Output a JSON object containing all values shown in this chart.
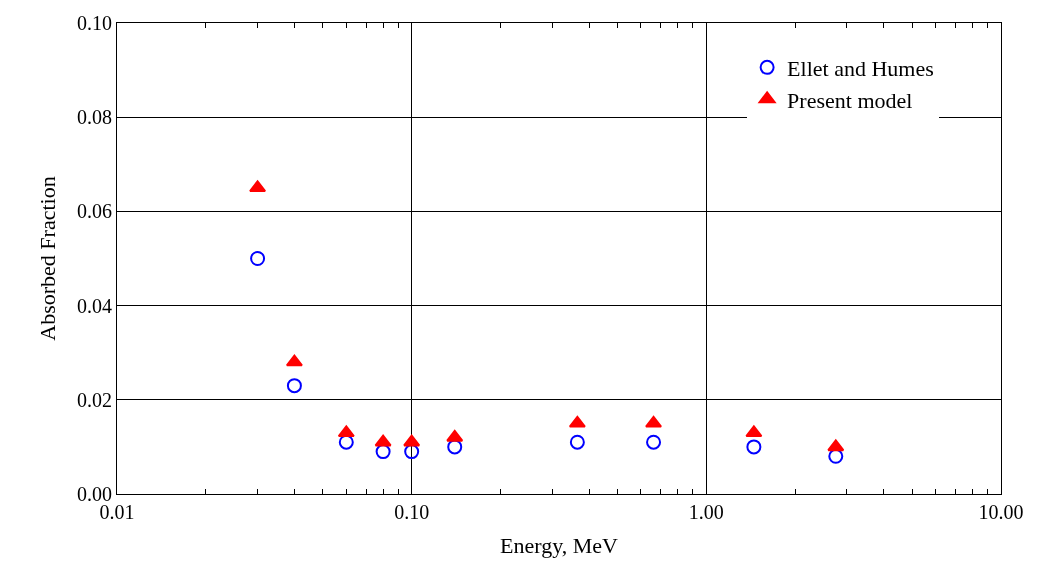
{
  "chart_data": {
    "type": "scatter",
    "xlabel": "Energy, MeV",
    "ylabel": "Absorbed Fraction",
    "log": "x",
    "x": [
      0.03,
      0.04,
      0.06,
      0.08,
      0.1,
      0.14,
      0.365,
      0.662,
      1.45,
      2.75
    ],
    "series": [
      {
        "name": "Ellet and Humes",
        "color": "#0000ff",
        "marker": "circle",
        "values": [
          0.05,
          0.023,
          0.011,
          0.009,
          0.009,
          0.01,
          0.011,
          0.011,
          0.01,
          0.008
        ]
      },
      {
        "name": "Present model",
        "color": "#ff0000",
        "marker": "triangle",
        "values": [
          0.065,
          0.028,
          0.013,
          0.011,
          0.011,
          0.012,
          0.015,
          0.015,
          0.013,
          0.01
        ]
      }
    ],
    "xlim": [
      0.01,
      10
    ],
    "ylim": [
      0,
      0.1
    ],
    "xticks": [
      {
        "value": 0.01,
        "label": "0.01"
      },
      {
        "value": 0.1,
        "label": "0.10"
      },
      {
        "value": 1,
        "label": "1.00"
      },
      {
        "value": 10,
        "label": "10.00"
      }
    ],
    "yticks": [
      {
        "value": 0,
        "label": "0.00"
      },
      {
        "value": 0.02,
        "label": "0.02"
      },
      {
        "value": 0.04,
        "label": "0.04"
      },
      {
        "value": 0.06,
        "label": "0.06"
      },
      {
        "value": 0.08,
        "label": "0.08"
      },
      {
        "value": 0.1,
        "label": "0.10"
      }
    ],
    "grid": true,
    "legend": "top right"
  }
}
